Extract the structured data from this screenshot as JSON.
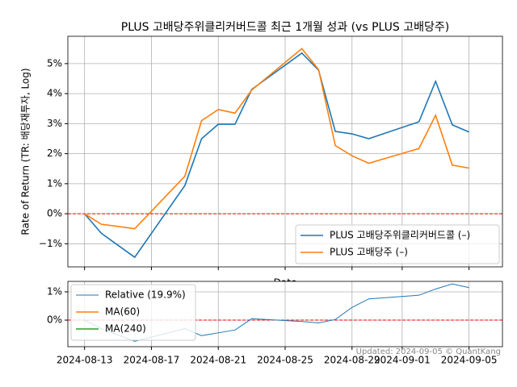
{
  "chart_data": [
    {
      "type": "line",
      "title": "PLUS 고배당주위클리커버드콜 최근 1개월 성과 (vs PLUS 고배당주)",
      "ylabel": "Rate of Return (TR: 배당재투자, Log)",
      "xlabel": "Date",
      "x": [
        "2024-08-13",
        "2024-08-14",
        "2024-08-16",
        "2024-08-19",
        "2024-08-20",
        "2024-08-21",
        "2024-08-22",
        "2024-08-23",
        "2024-08-26",
        "2024-08-27",
        "2024-08-28",
        "2024-08-29",
        "2024-08-30",
        "2024-09-02",
        "2024-09-03",
        "2024-09-04",
        "2024-09-05"
      ],
      "series": [
        {
          "name": "PLUS 고배당주위클리커버드콜 (–)",
          "color": "#1f77b4",
          "values": [
            0,
            -0.65,
            -1.45,
            0.94,
            2.5,
            2.98,
            2.98,
            4.14,
            5.35,
            4.78,
            2.74,
            2.66,
            2.5,
            3.06,
            4.41,
            2.96,
            2.72
          ]
        },
        {
          "name": "PLUS 고배당주 (–)",
          "color": "#ff7f0e",
          "values": [
            0,
            -0.35,
            -0.5,
            1.25,
            3.1,
            3.47,
            3.35,
            4.12,
            5.5,
            4.8,
            2.27,
            1.93,
            1.68,
            2.17,
            3.28,
            1.62,
            1.52
          ]
        }
      ],
      "xlim": [
        "2024-08-12",
        "2024-09-07"
      ],
      "xticks": [
        "2024-08-13",
        "2024-08-17",
        "2024-08-21",
        "2024-08-25",
        "2024-08-29",
        "2024-09-01",
        "2024-09-05"
      ],
      "ylim": [
        -1.77,
        5.91
      ],
      "yticks": [
        {
          "value": -1,
          "label": "−1%"
        },
        {
          "value": 0,
          "label": "0%"
        },
        {
          "value": 1,
          "label": "1%"
        },
        {
          "value": 2,
          "label": "2%"
        },
        {
          "value": 3,
          "label": "3%"
        },
        {
          "value": 4,
          "label": "4%"
        },
        {
          "value": 5,
          "label": "5%"
        }
      ],
      "hline": {
        "value": 0,
        "color": "#ff0000"
      },
      "grid": true,
      "legend": "lower right"
    },
    {
      "type": "line",
      "x": [
        "2024-08-13",
        "2024-08-14",
        "2024-08-16",
        "2024-08-19",
        "2024-08-20",
        "2024-08-21",
        "2024-08-22",
        "2024-08-23",
        "2024-08-26",
        "2024-08-27",
        "2024-08-28",
        "2024-08-29",
        "2024-08-30",
        "2024-09-02",
        "2024-09-03",
        "2024-09-04",
        "2024-09-05"
      ],
      "series": [
        {
          "name": "Relative (19.9%)",
          "color": "#1f77b4",
          "values": [
            0,
            -0.3,
            -0.75,
            -0.3,
            -0.55,
            -0.45,
            -0.35,
            0.05,
            -0.05,
            -0.1,
            0.02,
            0.45,
            0.75,
            0.88,
            1.1,
            1.28,
            1.15
          ]
        },
        {
          "name": "MA(60)",
          "color": "#ff7f0e",
          "values": [
            null,
            null,
            null,
            null,
            null,
            null,
            null,
            null,
            null,
            null,
            null,
            null,
            null,
            null,
            null,
            null,
            null
          ]
        },
        {
          "name": "MA(240)",
          "color": "#2ca02c",
          "values": [
            null,
            null,
            null,
            null,
            null,
            null,
            null,
            null,
            null,
            null,
            null,
            null,
            null,
            null,
            null,
            null,
            null
          ]
        }
      ],
      "xlim": [
        "2024-08-12",
        "2024-09-07"
      ],
      "xticks": [
        "2024-08-13",
        "2024-08-17",
        "2024-08-21",
        "2024-08-25",
        "2024-08-29",
        "2024-09-01",
        "2024-09-05"
      ],
      "ylim": [
        -0.94,
        1.37
      ],
      "yticks": [
        {
          "value": 0,
          "label": "0%"
        },
        {
          "value": 1,
          "label": "1%"
        }
      ],
      "hline": {
        "value": 0,
        "color": "#ff0000"
      },
      "annotation": "Updated: 2024-09-05 © QuantKang",
      "grid": true,
      "legend": "upper left"
    }
  ]
}
